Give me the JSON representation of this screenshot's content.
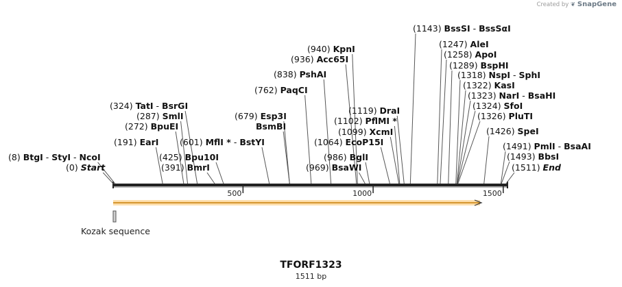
{
  "brand": {
    "prefix": "Created by",
    "name": "SnapGene"
  },
  "title": "TFORF1323",
  "length_label": "1511 bp",
  "sequence_length": 1511,
  "ticks": [
    {
      "pos": 500,
      "label": "500"
    },
    {
      "pos": 1000,
      "label": "1000"
    },
    {
      "pos": 1500,
      "label": "1500"
    }
  ],
  "features": [
    {
      "name": "Kozak sequence",
      "start": 1,
      "end": 6,
      "type": "misc_feature"
    }
  ],
  "orf": {
    "start": 1,
    "end": 1511,
    "color": "#f5b042"
  },
  "sites": [
    {
      "pos": "(8)",
      "names": [
        [
          "BtgI"
        ],
        [
          "StyI"
        ],
        [
          "NcoI"
        ]
      ],
      "bp": 8
    },
    {
      "pos": "(0)",
      "names": [
        [
          "Start",
          "it"
        ]
      ],
      "bp": 0
    },
    {
      "pos": "(324)",
      "names": [
        [
          "TatI"
        ],
        [
          "BsrGI"
        ]
      ],
      "bp": 324
    },
    {
      "pos": "(287)",
      "names": [
        [
          "SmlI"
        ]
      ],
      "bp": 287
    },
    {
      "pos": "(272)",
      "names": [
        [
          "BpuEI"
        ]
      ],
      "bp": 272
    },
    {
      "pos": "(191)",
      "names": [
        [
          "EarI"
        ]
      ],
      "bp": 191
    },
    {
      "pos": "(425)",
      "names": [
        [
          "Bpu10I"
        ]
      ],
      "bp": 425
    },
    {
      "pos": "(391)",
      "names": [
        [
          "BmrI"
        ]
      ],
      "bp": 391
    },
    {
      "pos": "(601)",
      "names": [
        [
          "MflI *"
        ],
        [
          "BstYI"
        ]
      ],
      "bp": 601
    },
    {
      "pos": "(679)",
      "names": [
        [
          "Esp3I"
        ]
      ],
      "bp": 679
    },
    {
      "pos": "",
      "names": [
        [
          "BsmBI"
        ]
      ],
      "bp": 679
    },
    {
      "pos": "(762)",
      "names": [
        [
          "PaqCI"
        ]
      ],
      "bp": 762
    },
    {
      "pos": "(838)",
      "names": [
        [
          "PshAI"
        ]
      ],
      "bp": 838
    },
    {
      "pos": "(936)",
      "names": [
        [
          "Acc65I"
        ]
      ],
      "bp": 936
    },
    {
      "pos": "(940)",
      "names": [
        [
          "KpnI"
        ]
      ],
      "bp": 940
    },
    {
      "pos": "(969)",
      "names": [
        [
          "BsaWI"
        ]
      ],
      "bp": 969
    },
    {
      "pos": "(986)",
      "names": [
        [
          "BglI"
        ]
      ],
      "bp": 986
    },
    {
      "pos": "(1064)",
      "names": [
        [
          "EcoP15I"
        ]
      ],
      "bp": 1064
    },
    {
      "pos": "(1099)",
      "names": [
        [
          "XcmI"
        ]
      ],
      "bp": 1099
    },
    {
      "pos": "(1102)",
      "names": [
        [
          "PflMI *"
        ]
      ],
      "bp": 1102
    },
    {
      "pos": "(1119)",
      "names": [
        [
          "DraI"
        ]
      ],
      "bp": 1119
    },
    {
      "pos": "(1143)",
      "names": [
        [
          "BssSI"
        ],
        [
          "BssSαI"
        ]
      ],
      "bp": 1143
    },
    {
      "pos": "(1247)",
      "names": [
        [
          "AleI"
        ]
      ],
      "bp": 1247
    },
    {
      "pos": "(1258)",
      "names": [
        [
          "ApoI"
        ]
      ],
      "bp": 1258
    },
    {
      "pos": "(1289)",
      "names": [
        [
          "BspHI"
        ]
      ],
      "bp": 1289
    },
    {
      "pos": "(1318)",
      "names": [
        [
          "NspI"
        ],
        [
          "SphI"
        ]
      ],
      "bp": 1318
    },
    {
      "pos": "(1322)",
      "names": [
        [
          "KasI"
        ]
      ],
      "bp": 1322
    },
    {
      "pos": "(1323)",
      "names": [
        [
          "NarI"
        ],
        [
          "BsaHI"
        ]
      ],
      "bp": 1323
    },
    {
      "pos": "(1324)",
      "names": [
        [
          "SfoI"
        ]
      ],
      "bp": 1324
    },
    {
      "pos": "(1326)",
      "names": [
        [
          "PluTI"
        ]
      ],
      "bp": 1326
    },
    {
      "pos": "(1426)",
      "names": [
        [
          "SpeI"
        ]
      ],
      "bp": 1426
    },
    {
      "pos": "(1491)",
      "names": [
        [
          "PmlI"
        ],
        [
          "BsaAI"
        ]
      ],
      "bp": 1491
    },
    {
      "pos": "(1493)",
      "names": [
        [
          "BbsI"
        ]
      ],
      "bp": 1493
    },
    {
      "pos": "(1511)",
      "names": [
        [
          "End",
          "it"
        ]
      ],
      "bp": 1511
    }
  ]
}
